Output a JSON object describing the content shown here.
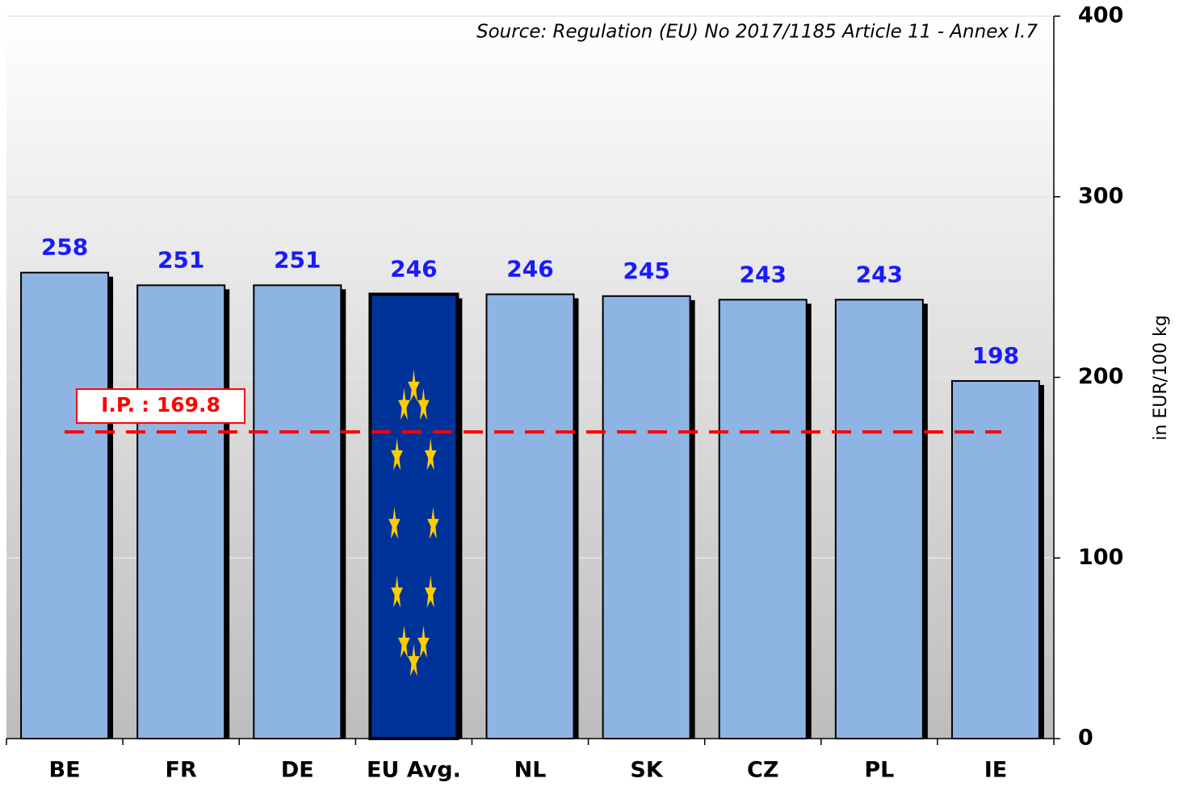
{
  "chart_data": {
    "type": "bar",
    "source": "Source: Regulation (EU) No 2017/1185 Article 11 - Annex I.7",
    "y_axis_label": "in EUR/100 kg",
    "categories": [
      "BE",
      "FR",
      "DE",
      "EU Avg.",
      "NL",
      "SK",
      "CZ",
      "PL",
      "IE"
    ],
    "values": [
      258,
      251,
      251,
      246,
      246,
      245,
      243,
      243,
      198
    ],
    "colors": [
      "#8eb4e3",
      "#8eb4e3",
      "#8eb4e3",
      "#003399",
      "#8eb4e3",
      "#8eb4e3",
      "#8eb4e3",
      "#8eb4e3",
      "#8eb4e3"
    ],
    "ylim": [
      0,
      400
    ],
    "yticks": [
      0,
      100,
      200,
      300,
      400
    ],
    "grid": true,
    "y_axis_side": "right",
    "reference_line": {
      "name": "I.P.",
      "value": 169.8,
      "value_label": ": 169.8",
      "color": "#ff0000"
    }
  }
}
